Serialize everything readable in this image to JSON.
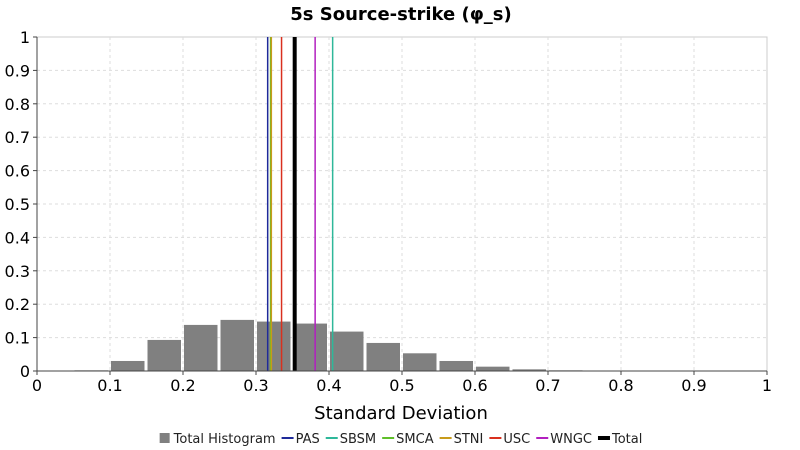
{
  "chart_data": {
    "type": "bar",
    "title": "5s Source-strike (φ_s)",
    "xlabel": "Standard Deviation",
    "ylabel": "",
    "xlim": [
      0,
      1
    ],
    "ylim": [
      0,
      1
    ],
    "x_ticks": [
      "0",
      "0.1",
      "0.2",
      "0.3",
      "0.4",
      "0.5",
      "0.6",
      "0.7",
      "0.8",
      "0.9",
      "1"
    ],
    "y_ticks": [
      "0",
      "0.1",
      "0.2",
      "0.3",
      "0.4",
      "0.5",
      "0.6",
      "0.7",
      "0.8",
      "0.9",
      "1"
    ],
    "grid": true,
    "legend_position": "bottom",
    "histogram": {
      "name": "Total Histogram",
      "color": "#808080",
      "bin_width": 0.05,
      "bin_starts": [
        0.05,
        0.1,
        0.15,
        0.2,
        0.25,
        0.3,
        0.35,
        0.4,
        0.45,
        0.5,
        0.55,
        0.6,
        0.65,
        0.7,
        0.75
      ],
      "values": [
        0.002,
        0.03,
        0.093,
        0.138,
        0.153,
        0.148,
        0.142,
        0.118,
        0.084,
        0.053,
        0.03,
        0.013,
        0.005,
        0.002,
        0.001
      ]
    },
    "lines": [
      {
        "name": "PAS",
        "x": 0.316,
        "color": "#1f2a99",
        "bold": false
      },
      {
        "name": "SBSM",
        "x": 0.405,
        "color": "#2eb89a",
        "bold": false
      },
      {
        "name": "SMCA",
        "x": 0.32,
        "color": "#5fbf2a",
        "bold": false
      },
      {
        "name": "STNI",
        "x": 0.321,
        "color": "#c89b1a",
        "bold": false
      },
      {
        "name": "USC",
        "x": 0.335,
        "color": "#d9301e",
        "bold": false
      },
      {
        "name": "WNGC",
        "x": 0.381,
        "color": "#b21fbf",
        "bold": false
      },
      {
        "name": "Total",
        "x": 0.353,
        "color": "#000000",
        "bold": true
      }
    ]
  }
}
